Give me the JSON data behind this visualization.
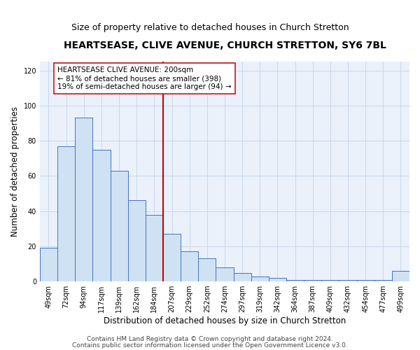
{
  "title": "HEARTSEASE, CLIVE AVENUE, CHURCH STRETTON, SY6 7BL",
  "subtitle": "Size of property relative to detached houses in Church Stretton",
  "xlabel": "Distribution of detached houses by size in Church Stretton",
  "ylabel": "Number of detached properties",
  "bins": [
    "49sqm",
    "72sqm",
    "94sqm",
    "117sqm",
    "139sqm",
    "162sqm",
    "184sqm",
    "207sqm",
    "229sqm",
    "252sqm",
    "274sqm",
    "297sqm",
    "319sqm",
    "342sqm",
    "364sqm",
    "387sqm",
    "409sqm",
    "432sqm",
    "454sqm",
    "477sqm",
    "499sqm"
  ],
  "values": [
    19,
    77,
    93,
    75,
    63,
    46,
    38,
    27,
    17,
    13,
    8,
    5,
    3,
    2,
    1,
    1,
    1,
    1,
    1,
    1,
    6
  ],
  "bar_color": "#cfe2f3",
  "bar_edge_color": "#4472c4",
  "highlight_bin_index": 7,
  "highlight_color": "#cc0000",
  "annotation_title": "HEARTSEASE CLIVE AVENUE: 200sqm",
  "annotation_line1": "81% of detached houses are smaller (398)",
  "annotation_line2": "19% of semi-detached houses are larger (94)",
  "annotation_box_facecolor": "#ffffff",
  "annotation_box_edgecolor": "#cc0000",
  "yticks": [
    0,
    20,
    40,
    60,
    80,
    100,
    120
  ],
  "footer1": "Contains HM Land Registry data © Crown copyright and database right 2024.",
  "footer2": "Contains public sector information licensed under the Open Government Licence v3.0.",
  "ylim": [
    0,
    125
  ],
  "bg_color": "#eaf1fb",
  "grid_color": "#c8d8eb",
  "title_fontsize": 10,
  "subtitle_fontsize": 9,
  "axis_label_fontsize": 8.5,
  "tick_fontsize": 7,
  "annotation_fontsize": 7.5,
  "footer_fontsize": 6.5
}
